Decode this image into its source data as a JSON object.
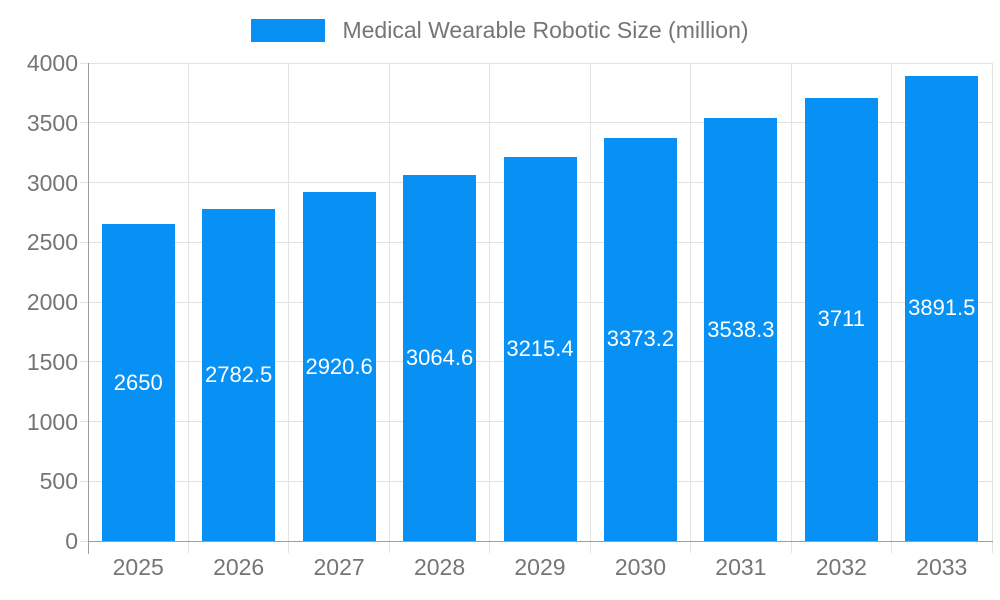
{
  "chart": {
    "legend": {
      "label": "Medical Wearable Robotic Size (million)",
      "swatch_color": "#0891f5"
    },
    "colors": {
      "bar": "#0891f5",
      "bar_label": "#ffffff",
      "grid": "#e2e2e2",
      "axis": "#9e9e9e",
      "text": "#757575",
      "background": "#ffffff"
    }
  },
  "chart_data": {
    "type": "bar",
    "title": "Medical Wearable Robotic Size (million)",
    "categories": [
      "2025",
      "2026",
      "2027",
      "2028",
      "2029",
      "2030",
      "2031",
      "2032",
      "2033"
    ],
    "values": [
      2650,
      2782.5,
      2920.6,
      3064.6,
      3215.4,
      3373.2,
      3538.3,
      3711,
      3891.5
    ],
    "value_labels": [
      "2650",
      "2782.5",
      "2920.6",
      "3064.6",
      "3215.4",
      "3373.2",
      "3538.3",
      "3711",
      "3891.5"
    ],
    "xlabel": "",
    "ylabel": "",
    "ylim": [
      0,
      4000
    ],
    "yticks": [
      0,
      500,
      1000,
      1500,
      2000,
      2500,
      3000,
      3500,
      4000
    ],
    "ytick_labels": [
      "0",
      "500",
      "1000",
      "1500",
      "2000",
      "2500",
      "3000",
      "3500",
      "4000"
    ],
    "grid": true,
    "legend_position": "top",
    "bar_label_position": "center"
  }
}
